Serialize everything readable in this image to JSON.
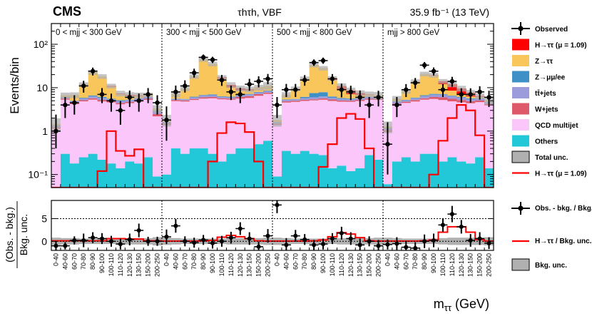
{
  "header": {
    "experiment": "CMS",
    "channel": "τhτh, VBF",
    "lumi": "35.9 fb⁻¹ (13 TeV)"
  },
  "colors": {
    "signal": "#ff0000",
    "ztautau": "#f9c65b",
    "zll": "#4090c8",
    "ttbar": "#9c9cdc",
    "wjets": "#de5a6a",
    "qcd": "#fbc7fb",
    "others": "#22c8d8",
    "unc": "#b0b0b0"
  },
  "chart_data": [
    {
      "type": "bar",
      "subtype": "stacked histogram",
      "ylabel": "Events/bin",
      "yscale": "log",
      "ylim": [
        0.05,
        300
      ],
      "yticks": [
        "10⁻¹",
        "1",
        "10",
        "10²"
      ],
      "categories": [
        "0-40",
        "40-60",
        "60-70",
        "70-80",
        "80-90",
        "90-100",
        "100-110",
        "110-120",
        "120-130",
        "130-150",
        "150-200",
        "200-250"
      ],
      "region_labels": [
        "0 < mjj < 300 GeV",
        "300 < mjj < 500 GeV",
        "500 < mjj < 800 GeV",
        "mjj > 800 GeV"
      ],
      "legend": [
        "Observed",
        "H→ττ (μ = 1.09)",
        "Z→ττ",
        "Z→μμ/ee",
        "tt̄+jets",
        "W+jets",
        "QCD multijet",
        "Others",
        "Total unc.",
        "H→ττ (μ = 1.09)"
      ],
      "stack_order": [
        "others",
        "qcd",
        "wjets",
        "ttbar",
        "zll",
        "ztautau",
        "signal"
      ],
      "regions": [
        {
          "others": [
            0.04,
            0.3,
            0.18,
            0.25,
            0.3,
            0.22,
            0.18,
            0.14,
            0.2,
            0.18,
            0.25,
            0.09
          ],
          "qcd": [
            1.1,
            5.0,
            4.0,
            4.6,
            5.0,
            4.6,
            4.4,
            4.0,
            4.2,
            4.6,
            5.0,
            2.1
          ],
          "wjets": [
            0.1,
            0.3,
            0.3,
            0.3,
            0.4,
            0.4,
            0.3,
            0.3,
            0.3,
            0.3,
            0.3,
            0.3
          ],
          "ttbar": [
            0.1,
            0.4,
            0.4,
            0.5,
            0.6,
            0.6,
            0.5,
            0.5,
            0.5,
            0.5,
            0.6,
            0.4
          ],
          "zll": [
            0.02,
            0.1,
            0.1,
            0.2,
            0.3,
            0.3,
            0.2,
            0.2,
            0.1,
            0.1,
            0.1,
            0.1
          ],
          "ztautau": [
            0.1,
            0.6,
            1.8,
            6.0,
            16.0,
            12.0,
            5.0,
            2.0,
            1.2,
            0.8,
            0.6,
            0.3
          ],
          "signal": [
            0.0,
            0.0,
            0.0,
            0.0,
            0.0,
            0.1,
            0.4,
            0.25,
            0.35,
            0.2,
            0.0,
            0.0
          ],
          "total_unc": [
            0.35,
            0.15,
            0.15,
            0.12,
            0.12,
            0.12,
            0.12,
            0.15,
            0.15,
            0.15,
            0.12,
            0.2
          ],
          "signal_line": [
            0.03,
            0.03,
            0.03,
            0.03,
            0.04,
            0.12,
            1.0,
            0.35,
            0.27,
            0.38,
            0.04,
            0.03
          ],
          "observed": [
            1.0,
            4.0,
            4.5,
            11.0,
            24.0,
            7.0,
            5.0,
            3.0,
            6.0,
            5.0,
            7.0,
            4.5
          ],
          "obs_err_up": [
            1.4,
            2.1,
            2.2,
            3.4,
            5.0,
            2.8,
            2.3,
            1.9,
            2.6,
            2.3,
            2.8,
            2.2
          ],
          "obs_err_down": [
            0.6,
            2.0,
            2.1,
            3.3,
            4.9,
            2.6,
            2.2,
            1.6,
            2.4,
            2.2,
            2.6,
            2.1
          ],
          "ratio": [
            -1,
            -1,
            0.2,
            0.2,
            0.8,
            0.6,
            0,
            -0.6,
            0.4,
            2.4,
            0,
            0
          ],
          "ratio_err": [
            1.0,
            0.8,
            0.9,
            1.5,
            1.2,
            1.2,
            1.2,
            1.2,
            1.3,
            1.5,
            1.0,
            1.0
          ],
          "ratio_signal": [
            0.1,
            0.1,
            0.1,
            0.1,
            0.1,
            0.1,
            0.6,
            0.6,
            0.5,
            0.5,
            0.1,
            0.1
          ],
          "ratio_band": [
            0.8,
            0.7,
            0.7,
            0.6,
            0.6,
            0.6,
            0.6,
            0.7,
            0.7,
            0.7,
            0.7,
            0.9
          ]
        },
        {
          "others": [
            0.1,
            0.4,
            0.3,
            0.4,
            0.4,
            0.3,
            0.2,
            0.3,
            0.4,
            0.4,
            0.5,
            0.6
          ],
          "qcd": [
            1.3,
            4.5,
            4.5,
            4.8,
            5.2,
            5.4,
            5.2,
            5.0,
            5.2,
            5.4,
            6.0,
            6.6
          ],
          "wjets": [
            0.1,
            0.3,
            0.3,
            0.3,
            0.4,
            0.4,
            0.3,
            0.3,
            0.5,
            0.6,
            0.6,
            0.5
          ],
          "ttbar": [
            0.1,
            0.3,
            0.3,
            0.5,
            0.6,
            0.6,
            0.4,
            0.4,
            0.5,
            0.6,
            0.7,
            0.7
          ],
          "zll": [
            0.02,
            0.1,
            0.1,
            0.2,
            0.2,
            0.3,
            0.2,
            0.2,
            0.2,
            0.2,
            0.2,
            0.2
          ],
          "ztautau": [
            0.2,
            1.5,
            4.0,
            12.0,
            38.0,
            28.0,
            10.0,
            4.0,
            2.0,
            1.5,
            2.0,
            2.5
          ],
          "signal": [
            0.0,
            0.0,
            0.0,
            0.0,
            0.05,
            0.2,
            1.0,
            1.4,
            0.9,
            0.5,
            0.1,
            0.05
          ],
          "total_unc": [
            0.3,
            0.15,
            0.12,
            0.12,
            0.12,
            0.12,
            0.12,
            0.15,
            0.15,
            0.15,
            0.15,
            0.2
          ],
          "signal_line": [
            0.03,
            0.03,
            0.03,
            0.04,
            0.05,
            0.2,
            0.9,
            1.6,
            1.5,
            0.95,
            0.2,
            0.05
          ],
          "observed": [
            1.8,
            8.0,
            11.0,
            22.0,
            50.0,
            44.0,
            15.0,
            8.0,
            7.0,
            12.0,
            14.0,
            16.0
          ],
          "obs_err_up": [
            1.9,
            3.2,
            3.8,
            5.4,
            8.0,
            7.5,
            4.6,
            3.2,
            3.0,
            4.0,
            4.3,
            4.7
          ],
          "obs_err_down": [
            1.2,
            2.8,
            3.3,
            4.9,
            7.6,
            7.1,
            4.0,
            2.8,
            2.6,
            3.5,
            3.8,
            4.0
          ],
          "ratio": [
            1,
            3.4,
            0,
            -0.3,
            0.3,
            -0.4,
            0,
            0.8,
            2.8,
            0.6,
            -1.2,
            1.2
          ],
          "ratio_err": [
            1.6,
            1.5,
            1.1,
            1.1,
            1.1,
            1.2,
            1.2,
            1.3,
            1.4,
            1.4,
            1.1,
            1.5
          ],
          "ratio_signal": [
            0.05,
            0.05,
            0.05,
            0.05,
            0.1,
            0.2,
            0.9,
            1.3,
            1.0,
            0.6,
            0.1,
            0.05
          ],
          "ratio_band": [
            0.8,
            0.7,
            0.6,
            0.6,
            0.6,
            0.6,
            0.6,
            0.7,
            0.7,
            0.7,
            0.7,
            0.8
          ]
        },
        {
          "others": [
            0.09,
            0.35,
            0.3,
            0.35,
            0.3,
            0.28,
            0.14,
            0.16,
            0.12,
            0.14,
            0.28,
            0.22
          ],
          "qcd": [
            1.3,
            4.2,
            4.4,
            4.6,
            4.8,
            5.0,
            4.8,
            4.6,
            4.6,
            4.8,
            5.0,
            5.0
          ],
          "wjets": [
            0.1,
            0.3,
            0.3,
            0.3,
            0.3,
            0.4,
            0.4,
            0.3,
            0.3,
            0.3,
            0.3,
            0.3
          ],
          "ttbar": [
            0.1,
            0.4,
            0.4,
            0.5,
            0.6,
            0.6,
            0.5,
            0.5,
            0.4,
            0.4,
            0.6,
            0.5
          ],
          "zll": [
            0.02,
            0.1,
            0.1,
            0.4,
            1.5,
            1.6,
            0.4,
            0.2,
            0.2,
            0.1,
            0.1,
            0.1
          ],
          "ztautau": [
            0.2,
            1.5,
            4.0,
            10.0,
            26.0,
            20.0,
            9.0,
            3.0,
            1.5,
            1.0,
            0.7,
            0.5
          ],
          "signal": [
            0.0,
            0.0,
            0.0,
            0.0,
            0.05,
            0.3,
            1.2,
            2.2,
            1.6,
            0.8,
            0.1,
            0.0
          ],
          "total_unc": [
            0.3,
            0.15,
            0.12,
            0.12,
            0.12,
            0.12,
            0.12,
            0.15,
            0.15,
            0.15,
            0.15,
            0.2
          ],
          "signal_line": [
            0.03,
            0.03,
            0.03,
            0.04,
            0.05,
            0.15,
            0.5,
            2.0,
            2.5,
            1.9,
            0.4,
            0.05
          ],
          "observed": [
            4.0,
            9.0,
            9.0,
            15.0,
            38.0,
            42.0,
            16.0,
            9.0,
            8.0,
            6.0,
            4.0,
            6.0
          ],
          "obs_err_up": [
            2.1,
            3.2,
            3.2,
            4.5,
            6.8,
            7.2,
            4.6,
            3.4,
            3.1,
            2.6,
            2.1,
            2.5
          ],
          "obs_err_down": [
            2.0,
            2.9,
            2.9,
            3.9,
            6.2,
            6.5,
            4.0,
            3.0,
            2.8,
            2.4,
            2.0,
            2.3
          ],
          "ratio": [
            8,
            -0.8,
            1.2,
            0.4,
            -0.8,
            -0.6,
            0.6,
            1.8,
            0.6,
            -0.8,
            0,
            -1
          ],
          "ratio_err": [
            1.8,
            1.5,
            1.3,
            1.2,
            1.1,
            1.2,
            1.2,
            1.4,
            1.4,
            1.4,
            1.1,
            1.3
          ],
          "ratio_signal": [
            0.05,
            0.05,
            0.05,
            0.05,
            0.1,
            0.3,
            1.0,
            1.9,
            1.6,
            0.8,
            0.1,
            0.05
          ],
          "ratio_band": [
            0.8,
            0.7,
            0.6,
            0.6,
            0.6,
            0.6,
            0.6,
            0.7,
            0.7,
            0.7,
            0.7,
            0.8
          ]
        },
        {
          "others": [
            0.06,
            0.2,
            0.25,
            0.2,
            0.3,
            0.3,
            0.2,
            0.25,
            0.2,
            0.18,
            0.25,
            0.14
          ],
          "qcd": [
            0.9,
            3.8,
            4.2,
            4.6,
            5.0,
            5.2,
            5.0,
            4.6,
            4.4,
            4.2,
            4.4,
            3.8
          ],
          "wjets": [
            0.1,
            0.3,
            0.3,
            0.4,
            0.4,
            0.6,
            0.8,
            0.7,
            0.6,
            0.5,
            0.4,
            0.3
          ],
          "ttbar": [
            0.1,
            0.4,
            0.4,
            0.5,
            0.7,
            0.8,
            0.9,
            0.8,
            0.7,
            0.6,
            0.6,
            0.4
          ],
          "zll": [
            0.02,
            0.1,
            0.1,
            0.2,
            0.3,
            0.3,
            0.2,
            0.2,
            0.2,
            0.2,
            0.1,
            0.1
          ],
          "ztautau": [
            0.1,
            0.8,
            3.0,
            8.0,
            14.0,
            12.0,
            5.0,
            2.0,
            1.0,
            0.6,
            0.4,
            0.3
          ],
          "signal": [
            0.0,
            0.0,
            0.0,
            0.0,
            0.1,
            0.3,
            2.0,
            3.5,
            2.5,
            1.4,
            0.3,
            0.05
          ],
          "total_unc": [
            0.3,
            0.15,
            0.12,
            0.12,
            0.12,
            0.12,
            0.12,
            0.15,
            0.15,
            0.15,
            0.15,
            0.2
          ],
          "signal_line": [
            0.03,
            0.03,
            0.03,
            0.04,
            0.05,
            0.1,
            0.6,
            2.0,
            4.0,
            3.0,
            0.8,
            0.05
          ],
          "observed": [
            0.5,
            4.0,
            9.0,
            13.0,
            33.0,
            24.0,
            9.0,
            14.0,
            7.0,
            7.0,
            8.0,
            6.0
          ],
          "obs_err_up": [
            1.1,
            2.1,
            3.1,
            3.7,
            6.0,
            5.2,
            3.1,
            3.8,
            2.7,
            2.7,
            2.8,
            2.5
          ],
          "obs_err_down": [
            0.4,
            1.9,
            2.9,
            3.5,
            5.7,
            4.9,
            2.9,
            3.5,
            2.5,
            2.5,
            2.7,
            2.4
          ],
          "ratio": [
            -0.7,
            -0.5,
            -1.3,
            -1.5,
            0,
            0.2,
            3.6,
            6.0,
            3.2,
            0.2,
            0.6,
            -0.4
          ],
          "ratio_err": [
            1.1,
            1.4,
            1.4,
            1.3,
            1.5,
            1.5,
            1.5,
            1.8,
            1.5,
            1.4,
            1.4,
            1.3
          ],
          "ratio_signal": [
            0.05,
            0.05,
            0.05,
            0.05,
            0.1,
            0.3,
            2.0,
            3.2,
            3.2,
            2.0,
            0.4,
            0.05
          ],
          "ratio_band": [
            0.8,
            0.7,
            0.6,
            0.6,
            0.6,
            0.6,
            0.7,
            0.8,
            0.8,
            0.8,
            0.8,
            0.9
          ]
        }
      ]
    },
    {
      "type": "scatter",
      "subtype": "ratio panel",
      "ylabel": "(Obs. - bkg.) / Bkg. unc.",
      "ylim": [
        -2,
        9
      ],
      "yticks": [
        0,
        5
      ],
      "xlabel": "mττ (GeV)",
      "legend": [
        "Obs. - bkg. / Bkg. unc.",
        "H→ττ / Bkg. unc.",
        "Bkg. unc."
      ]
    }
  ]
}
